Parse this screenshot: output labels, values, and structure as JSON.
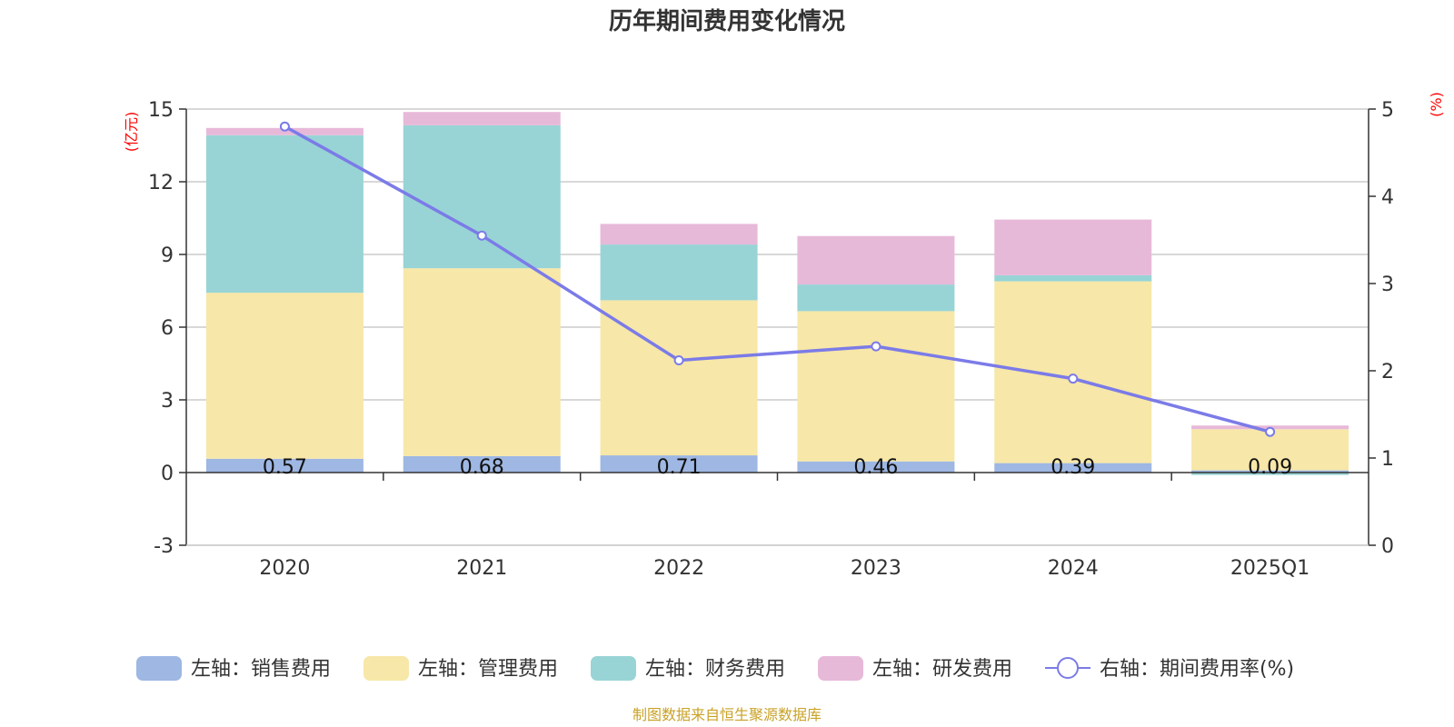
{
  "colors": {
    "sales": "#9eb7e3",
    "admin": "#f7e7a8",
    "finance": "#98d4d5",
    "rnd": "#e7b9d9",
    "rate": "#7b7be8",
    "unit": "#ff0000",
    "source": "#c9a227"
  },
  "chart_data": {
    "type": "bar",
    "stacked": true,
    "title": "历年期间费用变化情况",
    "left_unit": "(亿元)",
    "right_unit": "(%)",
    "categories": [
      "2020",
      "2021",
      "2022",
      "2023",
      "2024",
      "2025Q1"
    ],
    "left_axis": {
      "min": -3,
      "max": 15,
      "ticks": [
        -3,
        0,
        3,
        6,
        9,
        12,
        15
      ]
    },
    "right_axis": {
      "min": 0,
      "max": 5,
      "ticks": [
        0,
        1,
        2,
        3,
        4,
        5
      ]
    },
    "series": [
      {
        "key": "sales",
        "name": "左轴：销售费用",
        "axis": "left",
        "values": [
          0.57,
          0.68,
          0.71,
          0.46,
          0.39,
          0.09
        ]
      },
      {
        "key": "admin",
        "name": "左轴：管理费用",
        "axis": "left",
        "values": [
          6.85,
          7.75,
          6.4,
          6.2,
          7.5,
          1.7
        ]
      },
      {
        "key": "finance",
        "name": "左轴：财务费用",
        "axis": "left",
        "values": [
          6.5,
          5.9,
          2.3,
          1.1,
          0.25,
          -0.1
        ]
      },
      {
        "key": "rnd",
        "name": "左轴：研发费用",
        "axis": "left",
        "values": [
          0.3,
          0.55,
          0.85,
          2.0,
          2.3,
          0.15
        ]
      },
      {
        "key": "rate",
        "name": "右轴：期间费用率(%)",
        "axis": "right",
        "type": "line",
        "values": [
          4.8,
          3.55,
          2.12,
          2.28,
          1.91,
          1.3
        ]
      }
    ],
    "data_labels": [
      "0.57",
      "0.68",
      "0.71",
      "0.46",
      "0.39",
      "0.09"
    ]
  },
  "source": "制图数据来自恒生聚源数据库"
}
